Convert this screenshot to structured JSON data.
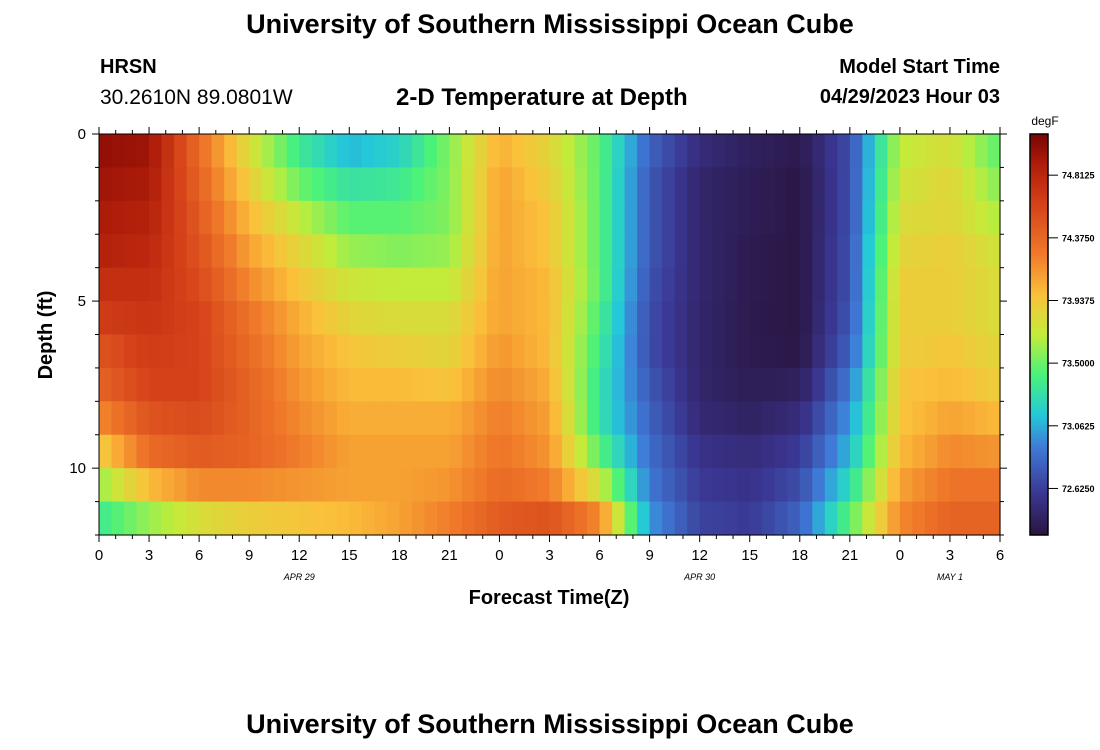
{
  "header": {
    "title": "University of Southern Mississippi Ocean Cube",
    "station": "HRSN",
    "coords": "30.2610N  89.0801W",
    "subtitle": "2-D Temperature at Depth",
    "model_start_label": "Model Start Time",
    "model_start_value": "04/29/2023 Hour 03"
  },
  "footer": {
    "title": "University of Southern Mississippi Ocean Cube"
  },
  "chart_data": {
    "type": "heatmap",
    "title": "2-D Temperature at Depth",
    "xlabel": "Forecast Time(Z)",
    "ylabel": "Depth (ft)",
    "x_range_hours": [
      0,
      54
    ],
    "y_range_ft": [
      0,
      12
    ],
    "x_ticks": [
      {
        "h": 0,
        "label": "0"
      },
      {
        "h": 3,
        "label": "3"
      },
      {
        "h": 6,
        "label": "6"
      },
      {
        "h": 9,
        "label": "9"
      },
      {
        "h": 12,
        "label": "12"
      },
      {
        "h": 15,
        "label": "15"
      },
      {
        "h": 18,
        "label": "18"
      },
      {
        "h": 21,
        "label": "21"
      },
      {
        "h": 24,
        "label": "0"
      },
      {
        "h": 27,
        "label": "3"
      },
      {
        "h": 30,
        "label": "6"
      },
      {
        "h": 33,
        "label": "9"
      },
      {
        "h": 36,
        "label": "12"
      },
      {
        "h": 39,
        "label": "15"
      },
      {
        "h": 42,
        "label": "18"
      },
      {
        "h": 45,
        "label": "21"
      },
      {
        "h": 48,
        "label": "0"
      },
      {
        "h": 51,
        "label": "3"
      },
      {
        "h": 54,
        "label": "6"
      }
    ],
    "date_labels": [
      {
        "h": 12,
        "label": "APR 29"
      },
      {
        "h": 36,
        "label": "APR 30"
      },
      {
        "h": 51,
        "label": "MAY 1"
      }
    ],
    "y_ticks": [
      {
        "d": 0,
        "label": "0"
      },
      {
        "d": 5,
        "label": "5"
      },
      {
        "d": 10,
        "label": "10"
      }
    ],
    "colorbar": {
      "unit": "degF",
      "min": 72.3,
      "max": 75.1,
      "ticks": [
        {
          "v": 74.8125,
          "label": "74.8125"
        },
        {
          "v": 74.375,
          "label": "74.3750"
        },
        {
          "v": 73.9375,
          "label": "73.9375"
        },
        {
          "v": 73.5,
          "label": "73.5000"
        },
        {
          "v": 73.0625,
          "label": "73.0625"
        },
        {
          "v": 72.625,
          "label": "72.6250"
        }
      ]
    },
    "depth_levels_ft": [
      0.5,
      1.5,
      2.5,
      3.5,
      4.5,
      5.5,
      6.5,
      7.5,
      8.5,
      9.5,
      10.5,
      11.5
    ],
    "time_hours": [
      0,
      3,
      6,
      9,
      12,
      15,
      18,
      21,
      24,
      27,
      30,
      33,
      36,
      39,
      42,
      45,
      48,
      51,
      54
    ],
    "values_degF": [
      [
        75.0,
        74.95,
        74.35,
        73.8,
        73.35,
        73.1,
        73.2,
        73.55,
        74.05,
        73.85,
        73.45,
        72.8,
        72.5,
        72.4,
        72.35,
        72.7,
        73.7,
        73.8,
        73.45
      ],
      [
        74.95,
        74.9,
        74.4,
        73.9,
        73.5,
        73.3,
        73.35,
        73.55,
        74.1,
        73.9,
        73.45,
        72.75,
        72.45,
        72.38,
        72.32,
        72.7,
        73.75,
        73.85,
        73.55
      ],
      [
        74.9,
        74.85,
        74.45,
        74.0,
        73.7,
        73.45,
        73.45,
        73.55,
        74.1,
        73.95,
        73.45,
        72.75,
        72.45,
        72.38,
        72.32,
        72.7,
        73.8,
        73.85,
        73.65
      ],
      [
        74.85,
        74.8,
        74.5,
        74.1,
        73.85,
        73.6,
        73.55,
        73.6,
        74.1,
        73.95,
        73.45,
        72.75,
        72.45,
        72.36,
        72.32,
        72.72,
        73.85,
        73.9,
        73.75
      ],
      [
        74.75,
        74.75,
        74.55,
        74.2,
        73.95,
        73.75,
        73.7,
        73.7,
        74.1,
        74.0,
        73.45,
        72.72,
        72.45,
        72.36,
        72.32,
        72.72,
        73.9,
        73.9,
        73.8
      ],
      [
        74.65,
        74.7,
        74.6,
        74.3,
        74.05,
        73.85,
        73.8,
        73.8,
        74.1,
        74.0,
        73.4,
        72.7,
        72.45,
        72.35,
        72.32,
        72.75,
        73.9,
        73.9,
        73.8
      ],
      [
        74.5,
        74.65,
        74.6,
        74.35,
        74.1,
        73.95,
        73.9,
        73.85,
        74.15,
        74.0,
        73.35,
        72.7,
        72.45,
        72.35,
        72.33,
        72.8,
        73.9,
        73.95,
        73.85
      ],
      [
        74.4,
        74.6,
        74.6,
        74.4,
        74.15,
        74.0,
        74.0,
        73.95,
        74.2,
        74.05,
        73.3,
        72.75,
        72.45,
        72.38,
        72.4,
        72.9,
        73.95,
        74.0,
        73.9
      ],
      [
        74.2,
        74.5,
        74.55,
        74.4,
        74.2,
        74.05,
        74.05,
        74.05,
        74.25,
        74.1,
        73.3,
        72.8,
        72.48,
        72.42,
        72.5,
        73.0,
        73.95,
        74.1,
        74.0
      ],
      [
        73.9,
        74.35,
        74.45,
        74.4,
        74.25,
        74.1,
        74.1,
        74.1,
        74.3,
        74.15,
        73.45,
        72.85,
        72.55,
        72.5,
        72.6,
        73.1,
        74.0,
        74.2,
        74.15
      ],
      [
        73.6,
        74.0,
        74.2,
        74.2,
        74.15,
        74.1,
        74.1,
        74.15,
        74.35,
        74.25,
        73.75,
        72.9,
        72.6,
        72.55,
        72.7,
        73.25,
        74.1,
        74.3,
        74.3
      ],
      [
        73.35,
        73.6,
        73.8,
        73.9,
        73.95,
        74.0,
        74.1,
        74.25,
        74.45,
        74.5,
        74.2,
        73.0,
        72.65,
        72.6,
        72.8,
        73.45,
        74.2,
        74.4,
        74.4
      ]
    ]
  }
}
